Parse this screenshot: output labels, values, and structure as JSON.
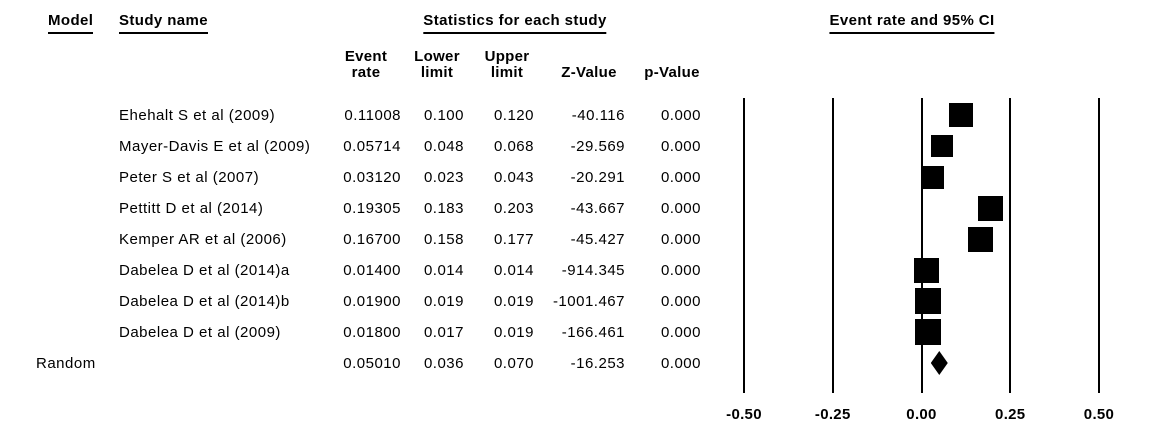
{
  "headers": {
    "model": "Model",
    "study_name": "Study name",
    "statistics": "Statistics for each study",
    "ci": "Event rate and 95% CI"
  },
  "columns": {
    "event_rate": "Event\nrate",
    "lower": "Lower\nlimit",
    "upper": "Upper\nlimit",
    "z": "Z-Value",
    "p": "p-Value"
  },
  "rows": [
    {
      "model": "",
      "name": "Ehehalt S et al (2009)",
      "event_rate": "0.11008",
      "lower": "0.100",
      "upper": "0.120",
      "z": "-40.116",
      "p": "0.000"
    },
    {
      "model": "",
      "name": "Mayer-Davis E et al (2009)",
      "event_rate": "0.05714",
      "lower": "0.048",
      "upper": "0.068",
      "z": "-29.569",
      "p": "0.000"
    },
    {
      "model": "",
      "name": "Peter S et al (2007)",
      "event_rate": "0.03120",
      "lower": "0.023",
      "upper": "0.043",
      "z": "-20.291",
      "p": "0.000"
    },
    {
      "model": "",
      "name": "Pettitt D et al (2014)",
      "event_rate": "0.19305",
      "lower": "0.183",
      "upper": "0.203",
      "z": "-43.667",
      "p": "0.000"
    },
    {
      "model": "",
      "name": "Kemper AR et al (2006)",
      "event_rate": "0.16700",
      "lower": "0.158",
      "upper": "0.177",
      "z": "-45.427",
      "p": "0.000"
    },
    {
      "model": "",
      "name": "Dabelea D et al (2014)a",
      "event_rate": "0.01400",
      "lower": "0.014",
      "upper": "0.014",
      "z": "-914.345",
      "p": "0.000"
    },
    {
      "model": "",
      "name": "Dabelea D et al (2014)b",
      "event_rate": "0.01900",
      "lower": "0.019",
      "upper": "0.019",
      "z": "-1001.467",
      "p": "0.000"
    },
    {
      "model": "",
      "name": "Dabelea D et al (2009)",
      "event_rate": "0.01800",
      "lower": "0.017",
      "upper": "0.019",
      "z": "-166.461",
      "p": "0.000"
    },
    {
      "model": "Random",
      "name": "",
      "event_rate": "0.05010",
      "lower": "0.036",
      "upper": "0.070",
      "z": "-16.253",
      "p": "0.000"
    }
  ],
  "chart_data": {
    "type": "forest",
    "title": "Event rate and 95% CI",
    "x_axis": {
      "min": -0.5,
      "max": 0.5,
      "tick_values": [
        -0.5,
        -0.25,
        0.0,
        0.25,
        0.5
      ],
      "tick_labels": [
        "-0.50",
        "-0.25",
        "0.00",
        "0.25",
        "0.50"
      ],
      "gridlines": true
    },
    "marker_color": "#000000",
    "studies": [
      {
        "name": "Ehehalt S et al (2009)",
        "event_rate": 0.11008,
        "lower": 0.1,
        "upper": 0.12,
        "z": -40.116,
        "p": 0.0,
        "marker": "square",
        "box_size": 24
      },
      {
        "name": "Mayer-Davis E et al (2009)",
        "event_rate": 0.05714,
        "lower": 0.048,
        "upper": 0.068,
        "z": -29.569,
        "p": 0.0,
        "marker": "square",
        "box_size": 22
      },
      {
        "name": "Peter S et al (2007)",
        "event_rate": 0.0312,
        "lower": 0.023,
        "upper": 0.043,
        "z": -20.291,
        "p": 0.0,
        "marker": "square",
        "box_size": 23
      },
      {
        "name": "Pettitt D et al (2014)",
        "event_rate": 0.19305,
        "lower": 0.183,
        "upper": 0.203,
        "z": -43.667,
        "p": 0.0,
        "marker": "square",
        "box_size": 25
      },
      {
        "name": "Kemper AR et al (2006)",
        "event_rate": 0.167,
        "lower": 0.158,
        "upper": 0.177,
        "z": -45.427,
        "p": 0.0,
        "marker": "square",
        "box_size": 25
      },
      {
        "name": "Dabelea D et al (2014)a",
        "event_rate": 0.014,
        "lower": 0.014,
        "upper": 0.014,
        "z": -914.345,
        "p": 0.0,
        "marker": "square",
        "box_size": 25
      },
      {
        "name": "Dabelea D et al (2014)b",
        "event_rate": 0.019,
        "lower": 0.019,
        "upper": 0.019,
        "z": -1001.467,
        "p": 0.0,
        "marker": "square",
        "box_size": 26
      },
      {
        "name": "Dabelea D et al (2009)",
        "event_rate": 0.018,
        "lower": 0.017,
        "upper": 0.019,
        "z": -166.461,
        "p": 0.0,
        "marker": "square",
        "box_size": 26
      }
    ],
    "summary": {
      "model": "Random",
      "event_rate": 0.0501,
      "lower": 0.036,
      "upper": 0.07,
      "z": -16.253,
      "p": 0.0,
      "marker": "diamond"
    }
  }
}
